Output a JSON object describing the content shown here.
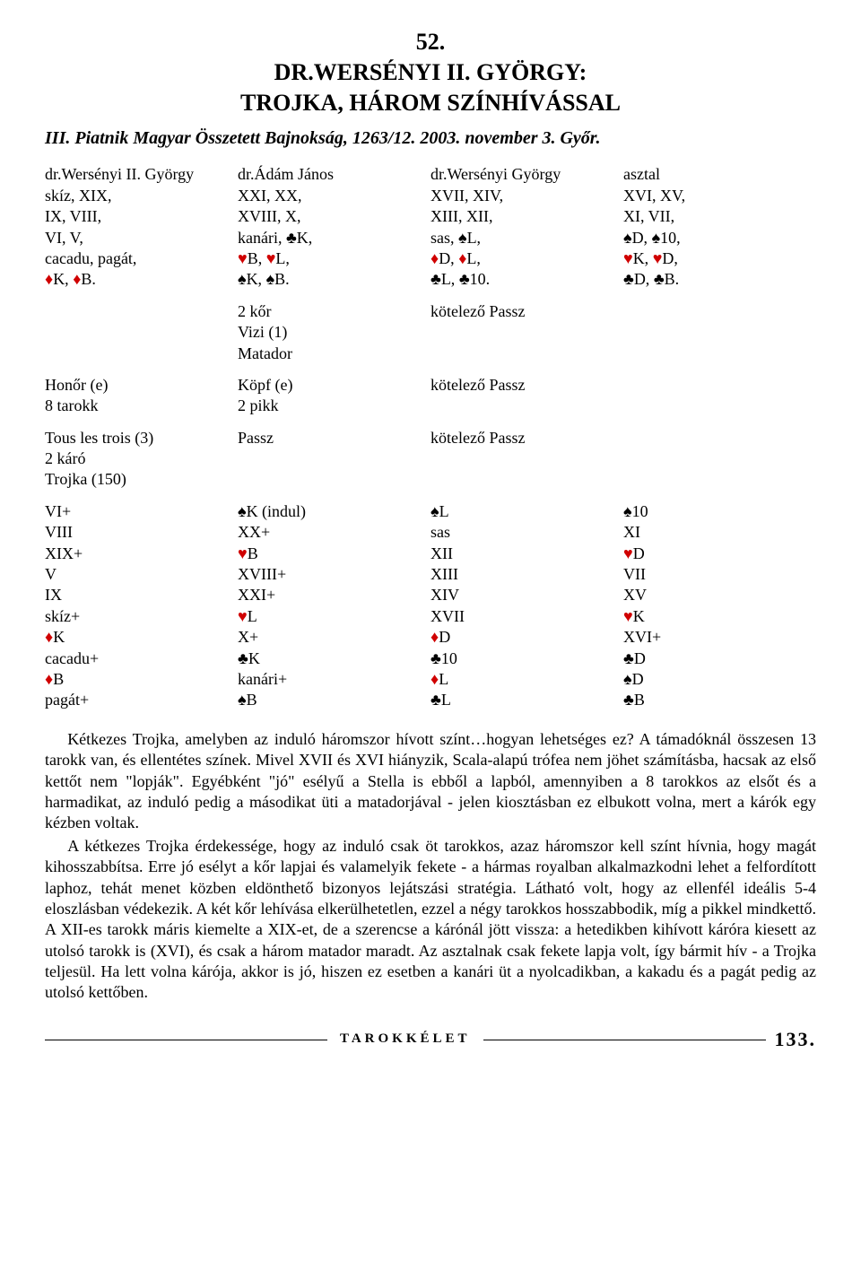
{
  "title_num": "52.",
  "title_main_a": "DR.WERSÉNYI II. GYÖRGY:",
  "title_main_b": "TROJKA, HÁROM SZÍNHÍVÁSSAL",
  "subtitle": "III. Piatnik Magyar Összetett Bajnokság, 1263/12. 2003. november 3. Győr.",
  "hands": {
    "headers": [
      "dr.Wersényi II. György",
      "dr.Ádám János",
      "dr.Wersényi György",
      "asztal"
    ],
    "rows": [
      [
        "skíz, XIX,",
        "XXI, XX,",
        "XVII, XIV,",
        "XVI, XV,"
      ],
      [
        "IX, VIII,",
        "XVIII, X,",
        "XIII, XII,",
        "XI, VII,"
      ],
      [
        "VI, V,",
        [
          "kanári, ",
          "club",
          "K,"
        ],
        [
          "sas, ",
          "spade",
          "L,"
        ],
        [
          "",
          "spade",
          "D, ",
          "spade",
          "10,"
        ]
      ],
      [
        [
          "cacadu, pagát,"
        ],
        [
          "",
          "heart",
          "B, ",
          "heart",
          "L,"
        ],
        [
          "",
          "diamond",
          "D, ",
          "diamond",
          "L,"
        ],
        [
          "",
          "heart",
          "K, ",
          "heart",
          "D,"
        ]
      ],
      [
        [
          "",
          "diamond",
          "K, ",
          "diamond",
          "B."
        ],
        [
          "",
          "spade",
          "K, ",
          "spade",
          "B."
        ],
        [
          "",
          "club",
          "L, ",
          "club",
          "10."
        ],
        [
          "",
          "club",
          "D, ",
          "club",
          "B."
        ]
      ]
    ]
  },
  "bidding": [
    {
      "c1": [],
      "c2": [
        "2 kőr",
        "Vizi (1)",
        "Matador"
      ],
      "c3": [
        "kötelező Passz"
      ],
      "c4": []
    },
    {
      "c1": [
        "Honőr (e)",
        "8 tarokk"
      ],
      "c2": [
        "Köpf (e)",
        "2 pikk"
      ],
      "c3": [
        "kötelező Passz"
      ],
      "c4": []
    },
    {
      "c1": [
        "Tous les trois (3)",
        "2 káró",
        "Trojka (150)"
      ],
      "c2": [
        "Passz"
      ],
      "c3": [
        "kötelező Passz"
      ],
      "c4": []
    }
  ],
  "tricks": [
    [
      [
        "VI+"
      ],
      [
        "",
        "spade",
        "K (indul)"
      ],
      [
        "",
        "spade",
        "L"
      ],
      [
        "",
        "spade",
        "10"
      ]
    ],
    [
      [
        "VIII"
      ],
      [
        "XX+"
      ],
      [
        "sas"
      ],
      [
        "XI"
      ]
    ],
    [
      [
        "XIX+"
      ],
      [
        "",
        "heart",
        "B"
      ],
      [
        "XII"
      ],
      [
        "",
        "heart",
        "D"
      ]
    ],
    [
      [
        "V"
      ],
      [
        "XVIII+"
      ],
      [
        "XIII"
      ],
      [
        "VII"
      ]
    ],
    [
      [
        "IX"
      ],
      [
        "XXI+"
      ],
      [
        "XIV"
      ],
      [
        "XV"
      ]
    ],
    [
      [
        "skíz+"
      ],
      [
        "",
        "heart",
        "L"
      ],
      [
        "XVII"
      ],
      [
        "",
        "heart",
        "K"
      ]
    ],
    [
      [
        "",
        "diamond",
        "K"
      ],
      [
        "X+"
      ],
      [
        "",
        "diamond",
        "D"
      ],
      [
        "XVI+"
      ]
    ],
    [
      [
        "cacadu+"
      ],
      [
        "",
        "club",
        "K"
      ],
      [
        "",
        "club",
        "10"
      ],
      [
        "",
        "club",
        "D"
      ]
    ],
    [
      [
        "",
        "diamond",
        "B"
      ],
      [
        "kanári+"
      ],
      [
        "",
        "diamond",
        "L"
      ],
      [
        "",
        "spade",
        "D"
      ]
    ],
    [
      [
        "pagát+"
      ],
      [
        "",
        "spade",
        "B"
      ],
      [
        "",
        "club",
        "L"
      ],
      [
        "",
        "club",
        "B"
      ]
    ]
  ],
  "body": [
    "Kétkezes Trojka, amelyben az induló háromszor hívott színt…hogyan lehetséges ez? A támadóknál összesen 13 tarokk van, és ellentétes színek. Mivel XVII és XVI hiányzik, Scala-alapú trófea nem jöhet számításba, hacsak az első kettőt nem \"lopják\". Egyébként \"jó\" esélyű a Stella is ebből a lapból, amennyiben a 8 tarokkos az elsőt és a harmadikat, az induló pedig a másodikat üti a matadorjával - jelen kiosztásban ez elbukott volna, mert a kárók egy kézben voltak.",
    "A kétkezes Trojka érdekessége, hogy az induló csak öt tarokkos, azaz háromszor kell színt hívnia, hogy magát kihosszabbítsa. Erre jó esélyt a kőr lapjai és valamelyik fekete - a hármas royalban alkalmazkodni lehet a felfordított laphoz, tehát menet közben eldönthető bizonyos lejátszási stratégia. Látható volt, hogy az ellenfél ideális 5-4 eloszlásban védekezik. A két kőr lehívása elkerülhetetlen, ezzel a négy tarokkos hosszabbodik, míg a pikkel mindkettő. A XII-es tarokk máris kiemelte a XIX-et, de a szerencse a kárónál jött vissza: a hetedikben kihívott káróra kiesett az utolsó tarokk is (XVI), és csak a három matador maradt. Az asztalnak csak fekete lapja volt, így bármit hív - a Trojka teljesül. Ha lett volna kárója, akkor is jó, hiszen ez esetben a kanári üt a nyolcadikban, a kakadu és a pagát pedig az utolsó kettőben."
  ],
  "footer_title": "TAROKKÉLET",
  "page_number": "133.",
  "suits": {
    "club": {
      "glyph": "♣",
      "color": "#000000"
    },
    "diamond": {
      "glyph": "♦",
      "color": "#d00000"
    },
    "heart": {
      "glyph": "♥",
      "color": "#d00000"
    },
    "spade": {
      "glyph": "♠",
      "color": "#000000"
    }
  }
}
